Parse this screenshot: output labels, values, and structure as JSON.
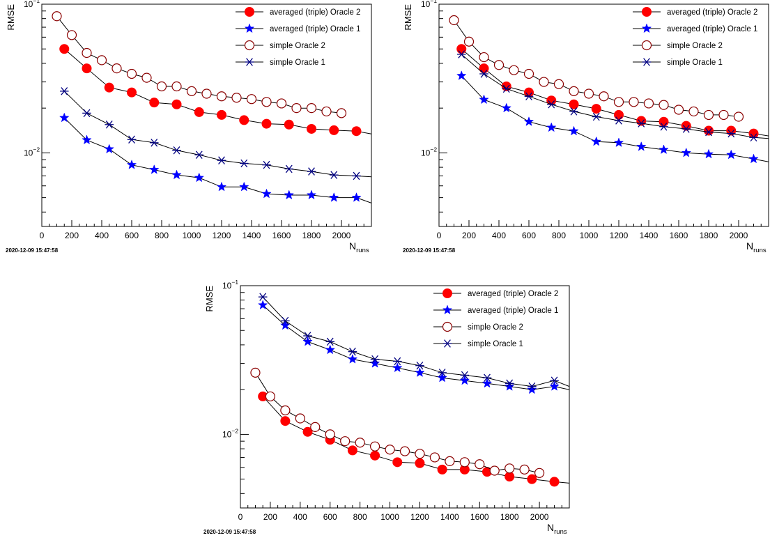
{
  "timestamp": "2020-12-09 15:47:58",
  "xlabel_main": "N",
  "xlabel_sub": "runs",
  "ylabel": "RMSE",
  "ytick_labels": {
    "top_base": "10",
    "top_exp": "−1",
    "mid_base": "10",
    "mid_exp": "−2"
  },
  "xtick_labels": [
    "0",
    "200",
    "400",
    "600",
    "800",
    "1000",
    "1200",
    "1400",
    "1600",
    "1800",
    "2000"
  ],
  "legend": [
    {
      "label": "averaged (triple) Oracle 2",
      "color": "#ff0000",
      "marker": "filled-circle"
    },
    {
      "label": "averaged (triple) Oracle 1",
      "color": "#0000ff",
      "marker": "star"
    },
    {
      "label": "simple Oracle 2",
      "color": "#8b0000",
      "marker": "open-circle"
    },
    {
      "label": "simple Oracle 1",
      "color": "#000080",
      "marker": "asterisk"
    }
  ],
  "chart_data": [
    {
      "type": "line",
      "xlim": [
        0,
        2200
      ],
      "ylim": [
        0.0032,
        0.1
      ],
      "yscale": "log",
      "legend_position": "top-right",
      "series": [
        {
          "name": "averaged (triple) Oracle 2",
          "x": [
            150,
            300,
            450,
            600,
            750,
            900,
            1050,
            1200,
            1350,
            1500,
            1650,
            1800,
            1950,
            2100,
            2200
          ],
          "y": [
            0.05,
            0.037,
            0.0275,
            0.0255,
            0.0218,
            0.0212,
            0.0188,
            0.018,
            0.0166,
            0.0157,
            0.0155,
            0.0145,
            0.0142,
            0.014,
            0.0134
          ]
        },
        {
          "name": "averaged (triple) Oracle 1",
          "x": [
            150,
            300,
            450,
            600,
            750,
            900,
            1050,
            1200,
            1350,
            1500,
            1650,
            1800,
            1950,
            2100,
            2200
          ],
          "y": [
            0.0172,
            0.0122,
            0.0106,
            0.0083,
            0.0077,
            0.0071,
            0.0068,
            0.0059,
            0.0059,
            0.0053,
            0.0052,
            0.0052,
            0.005,
            0.005,
            0.0046
          ]
        },
        {
          "name": "simple Oracle 2",
          "x": [
            100,
            200,
            300,
            400,
            500,
            600,
            700,
            800,
            900,
            1000,
            1100,
            1200,
            1300,
            1400,
            1500,
            1600,
            1700,
            1800,
            1900,
            2000
          ],
          "y": [
            0.083,
            0.062,
            0.047,
            0.042,
            0.037,
            0.034,
            0.032,
            0.028,
            0.028,
            0.026,
            0.025,
            0.024,
            0.0235,
            0.023,
            0.022,
            0.0215,
            0.02,
            0.02,
            0.019,
            0.0185
          ]
        },
        {
          "name": "simple Oracle 1",
          "x": [
            150,
            300,
            450,
            600,
            750,
            900,
            1050,
            1200,
            1350,
            1500,
            1650,
            1800,
            1950,
            2100,
            2200
          ],
          "y": [
            0.026,
            0.0185,
            0.0155,
            0.0123,
            0.0117,
            0.0104,
            0.0097,
            0.0089,
            0.0085,
            0.0083,
            0.0078,
            0.0075,
            0.0071,
            0.007,
            0.0069
          ]
        }
      ]
    },
    {
      "type": "line",
      "xlim": [
        0,
        2200
      ],
      "ylim": [
        0.0032,
        0.1
      ],
      "yscale": "log",
      "legend_position": "top-right",
      "series": [
        {
          "name": "averaged (triple) Oracle 2",
          "x": [
            150,
            300,
            450,
            600,
            750,
            900,
            1050,
            1200,
            1350,
            1500,
            1650,
            1800,
            1950,
            2100,
            2200
          ],
          "y": [
            0.05,
            0.037,
            0.028,
            0.0255,
            0.0225,
            0.0212,
            0.0198,
            0.018,
            0.0164,
            0.0162,
            0.0152,
            0.0141,
            0.0141,
            0.0135,
            0.013
          ]
        },
        {
          "name": "averaged (triple) Oracle 1",
          "x": [
            150,
            300,
            450,
            600,
            750,
            900,
            1050,
            1200,
            1350,
            1500,
            1650,
            1800,
            1950,
            2100,
            2200
          ],
          "y": [
            0.033,
            0.0228,
            0.02,
            0.0162,
            0.0148,
            0.014,
            0.0119,
            0.0117,
            0.011,
            0.0105,
            0.01,
            0.0098,
            0.0097,
            0.0091,
            0.0087
          ]
        },
        {
          "name": "simple Oracle 2",
          "x": [
            100,
            200,
            300,
            400,
            500,
            600,
            700,
            800,
            900,
            1000,
            1100,
            1200,
            1300,
            1400,
            1500,
            1600,
            1700,
            1800,
            1900,
            2000
          ],
          "y": [
            0.078,
            0.056,
            0.044,
            0.039,
            0.036,
            0.034,
            0.03,
            0.029,
            0.026,
            0.025,
            0.024,
            0.022,
            0.022,
            0.0215,
            0.021,
            0.0195,
            0.019,
            0.018,
            0.018,
            0.0175
          ]
        },
        {
          "name": "simple Oracle 1",
          "x": [
            150,
            300,
            450,
            600,
            750,
            900,
            1050,
            1200,
            1350,
            1500,
            1650,
            1800,
            1950,
            2100,
            2200
          ],
          "y": [
            0.046,
            0.034,
            0.027,
            0.024,
            0.0212,
            0.019,
            0.0175,
            0.0165,
            0.0158,
            0.015,
            0.0145,
            0.0138,
            0.0135,
            0.0127,
            0.0125
          ]
        }
      ]
    },
    {
      "type": "line",
      "xlim": [
        0,
        2200
      ],
      "ylim": [
        0.0032,
        0.1
      ],
      "yscale": "log",
      "legend_position": "top-right",
      "series": [
        {
          "name": "averaged (triple) Oracle 2",
          "x": [
            150,
            300,
            450,
            600,
            750,
            900,
            1050,
            1200,
            1350,
            1500,
            1650,
            1800,
            1950,
            2100,
            2200
          ],
          "y": [
            0.018,
            0.0123,
            0.0104,
            0.0092,
            0.0078,
            0.0072,
            0.0065,
            0.0064,
            0.0058,
            0.0058,
            0.0056,
            0.0052,
            0.005,
            0.0048,
            0.0047
          ]
        },
        {
          "name": "averaged (triple) Oracle 1",
          "x": [
            150,
            300,
            450,
            600,
            750,
            900,
            1050,
            1200,
            1350,
            1500,
            1650,
            1800,
            1950,
            2100,
            2200
          ],
          "y": [
            0.074,
            0.054,
            0.042,
            0.037,
            0.032,
            0.03,
            0.028,
            0.026,
            0.024,
            0.023,
            0.022,
            0.021,
            0.02,
            0.021,
            0.02
          ]
        },
        {
          "name": "simple Oracle 2",
          "x": [
            100,
            200,
            300,
            400,
            500,
            600,
            700,
            800,
            900,
            1000,
            1100,
            1200,
            1300,
            1400,
            1500,
            1600,
            1700,
            1800,
            1900,
            2000
          ],
          "y": [
            0.026,
            0.018,
            0.0145,
            0.0128,
            0.0112,
            0.01,
            0.009,
            0.0088,
            0.0083,
            0.0079,
            0.0077,
            0.0074,
            0.007,
            0.0066,
            0.0065,
            0.0063,
            0.0057,
            0.0059,
            0.0058,
            0.0055
          ]
        },
        {
          "name": "simple Oracle 1",
          "x": [
            150,
            300,
            450,
            600,
            750,
            900,
            1050,
            1200,
            1350,
            1500,
            1650,
            1800,
            1950,
            2100,
            2200
          ],
          "y": [
            0.084,
            0.058,
            0.046,
            0.042,
            0.036,
            0.032,
            0.031,
            0.029,
            0.026,
            0.025,
            0.024,
            0.022,
            0.021,
            0.023,
            0.021
          ]
        }
      ]
    }
  ]
}
